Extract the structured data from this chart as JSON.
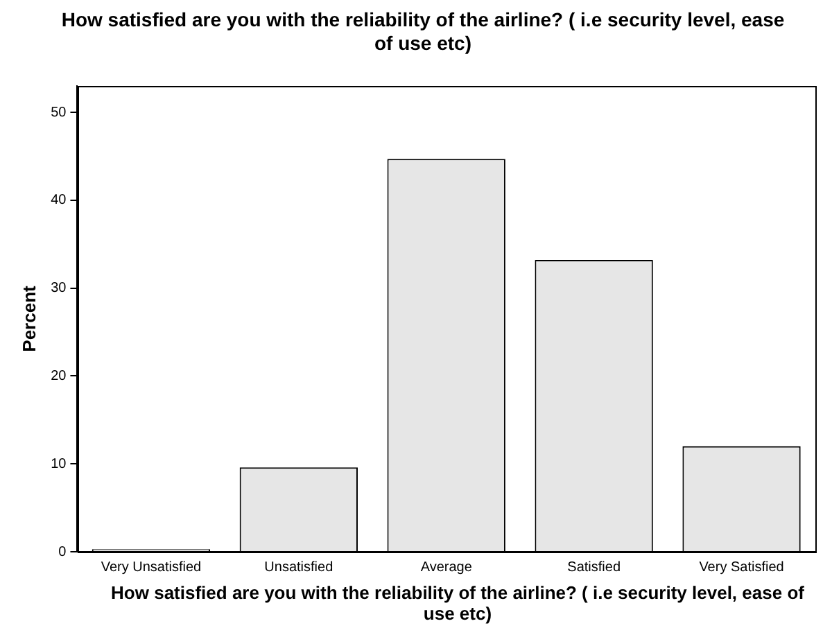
{
  "chart_data": {
    "type": "bar",
    "title": "How satisfied are you with the reliability of the airline? ( i.e security level, ease of use etc)",
    "xlabel": "How satisfied are you with the reliability of the airline? ( i.e security level, ease of use etc)",
    "ylabel": "Percent",
    "categories": [
      "Very Unsatisfied",
      "Unsatisfied",
      "Average",
      "Satisfied",
      "Very Satisfied"
    ],
    "values": [
      0.3,
      9.6,
      44.7,
      33.2,
      12.0
    ],
    "color": "#e6e6e6",
    "ylim": [
      0,
      53
    ],
    "yticks": [
      0,
      10,
      20,
      30,
      40,
      50
    ],
    "grid": false,
    "legend": false
  }
}
